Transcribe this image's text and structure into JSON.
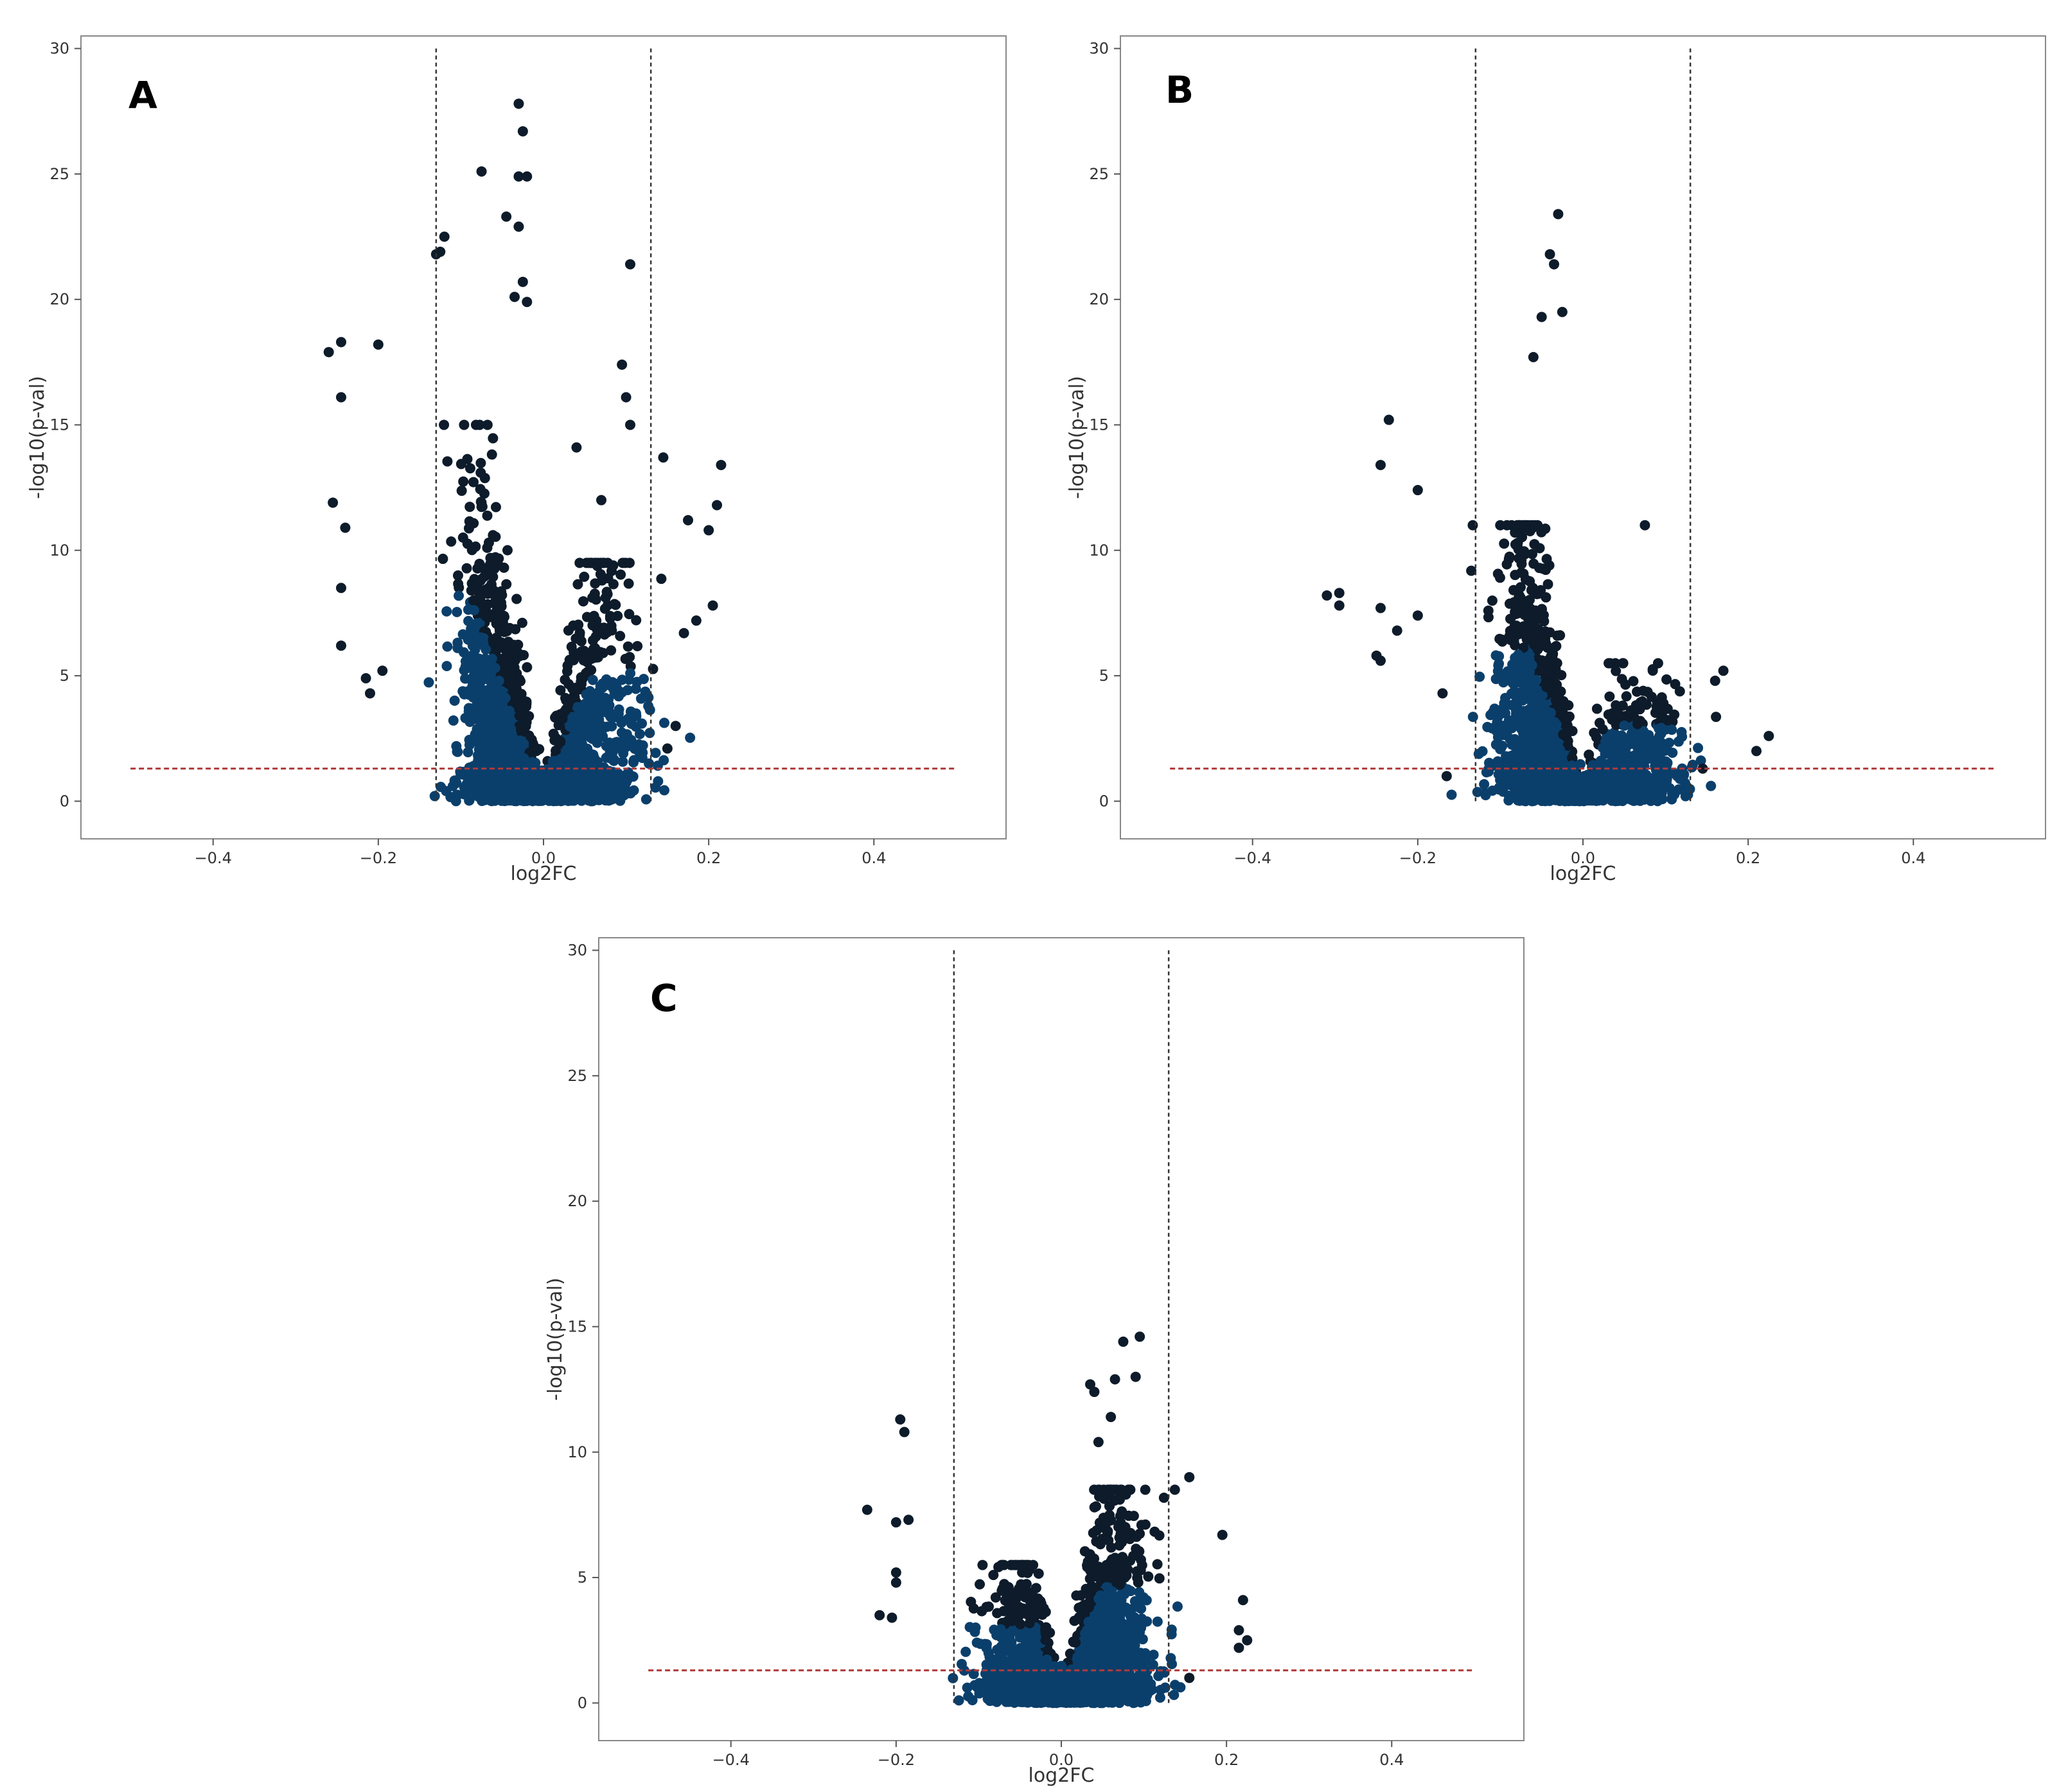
{
  "figure": {
    "panel_labels": [
      "A",
      "B",
      "C"
    ]
  },
  "chart_data": [
    {
      "panel": "A",
      "type": "scatter",
      "title": "",
      "xlabel": "log2FC",
      "ylabel": "-log10(p-val)",
      "xlim": [
        -0.56,
        0.56
      ],
      "ylim": [
        -1.5,
        30.5
      ],
      "xticks": [
        -0.4,
        -0.2,
        0.0,
        0.2,
        0.4
      ],
      "xtick_labels": [
        "−0.4",
        "−0.2",
        "0.0",
        "0.2",
        "0.4"
      ],
      "yticks": [
        0,
        5,
        10,
        15,
        20,
        25,
        30
      ],
      "ytick_labels": [
        "0",
        "5",
        "10",
        "15",
        "20",
        "25",
        "30"
      ],
      "fc_threshold": 0.13,
      "pval_threshold": 1.3,
      "threshold_line_range": [
        -0.5,
        0.5
      ],
      "vline_y_range": [
        0,
        30
      ],
      "point_color_dense": "#0b3f6b",
      "point_color_sparse": "#0d1b2a",
      "outlier_points": [
        [
          -0.03,
          27.8
        ],
        [
          -0.025,
          26.7
        ],
        [
          -0.02,
          24.9
        ],
        [
          -0.03,
          24.9
        ],
        [
          -0.075,
          25.1
        ],
        [
          -0.045,
          23.3
        ],
        [
          -0.03,
          22.9
        ],
        [
          -0.12,
          22.5
        ],
        [
          -0.125,
          21.9
        ],
        [
          -0.13,
          21.8
        ],
        [
          -0.025,
          20.7
        ],
        [
          -0.035,
          20.1
        ],
        [
          -0.02,
          19.9
        ],
        [
          0.105,
          21.4
        ],
        [
          -0.26,
          17.9
        ],
        [
          -0.245,
          18.3
        ],
        [
          -0.2,
          18.2
        ],
        [
          -0.245,
          16.1
        ],
        [
          -0.255,
          11.9
        ],
        [
          -0.24,
          10.9
        ],
        [
          -0.245,
          8.5
        ],
        [
          -0.245,
          6.2
        ],
        [
          -0.215,
          4.9
        ],
        [
          -0.21,
          4.3
        ],
        [
          -0.195,
          5.2
        ],
        [
          0.095,
          17.4
        ],
        [
          0.1,
          16.1
        ],
        [
          0.105,
          15.0
        ],
        [
          0.145,
          13.7
        ],
        [
          0.215,
          13.4
        ],
        [
          0.21,
          11.8
        ],
        [
          0.175,
          11.2
        ],
        [
          0.2,
          10.8
        ],
        [
          0.205,
          7.8
        ],
        [
          0.185,
          7.2
        ],
        [
          0.17,
          6.7
        ],
        [
          0.16,
          3.0
        ],
        [
          0.15,
          2.1
        ],
        [
          0.04,
          14.1
        ],
        [
          0.07,
          12.0
        ]
      ]
    },
    {
      "panel": "B",
      "type": "scatter",
      "title": "",
      "xlabel": "log2FC",
      "ylabel": "-log10(p-val)",
      "xlim": [
        -0.56,
        0.56
      ],
      "ylim": [
        -1.5,
        30.5
      ],
      "xticks": [
        -0.4,
        -0.2,
        0.0,
        0.2,
        0.4
      ],
      "xtick_labels": [
        "−0.4",
        "−0.2",
        "0.0",
        "0.2",
        "0.4"
      ],
      "yticks": [
        0,
        5,
        10,
        15,
        20,
        25,
        30
      ],
      "ytick_labels": [
        "0",
        "5",
        "10",
        "15",
        "20",
        "25",
        "30"
      ],
      "fc_threshold": 0.13,
      "pval_threshold": 1.3,
      "threshold_line_range": [
        -0.5,
        0.5
      ],
      "vline_y_range": [
        0,
        30
      ],
      "point_color_dense": "#0b3f6b",
      "point_color_sparse": "#0d1b2a",
      "outlier_points": [
        [
          -0.03,
          23.4
        ],
        [
          -0.04,
          21.8
        ],
        [
          -0.035,
          21.4
        ],
        [
          -0.025,
          19.5
        ],
        [
          -0.05,
          19.3
        ],
        [
          -0.06,
          17.7
        ],
        [
          -0.235,
          15.2
        ],
        [
          -0.245,
          13.4
        ],
        [
          -0.2,
          12.4
        ],
        [
          -0.31,
          8.2
        ],
        [
          -0.295,
          8.3
        ],
        [
          -0.295,
          7.8
        ],
        [
          -0.245,
          7.7
        ],
        [
          -0.2,
          7.4
        ],
        [
          -0.225,
          6.8
        ],
        [
          -0.25,
          5.8
        ],
        [
          -0.245,
          5.6
        ],
        [
          -0.17,
          4.3
        ],
        [
          -0.165,
          1.0
        ],
        [
          0.075,
          11.0
        ],
        [
          0.225,
          2.6
        ],
        [
          0.21,
          2.0
        ],
        [
          0.17,
          5.2
        ],
        [
          0.16,
          4.8
        ],
        [
          0.145,
          1.3
        ]
      ]
    },
    {
      "panel": "C",
      "type": "scatter",
      "title": "",
      "xlabel": "log2FC",
      "ylabel": "-log10(p-val)",
      "xlim": [
        -0.56,
        0.56
      ],
      "ylim": [
        -1.5,
        30.5
      ],
      "xticks": [
        -0.4,
        -0.2,
        0.0,
        0.2,
        0.4
      ],
      "xtick_labels": [
        "−0.4",
        "−0.2",
        "0.0",
        "0.2",
        "0.4"
      ],
      "yticks": [
        0,
        5,
        10,
        15,
        20,
        25,
        30
      ],
      "ytick_labels": [
        "0",
        "5",
        "10",
        "15",
        "20",
        "25",
        "30"
      ],
      "fc_threshold": 0.13,
      "pval_threshold": 1.3,
      "threshold_line_range": [
        -0.5,
        0.5
      ],
      "vline_y_range": [
        0,
        30
      ],
      "point_color_dense": "#0b3f6b",
      "point_color_sparse": "#0d1b2a",
      "outlier_points": [
        [
          0.095,
          14.6
        ],
        [
          0.075,
          14.4
        ],
        [
          0.09,
          13.0
        ],
        [
          0.065,
          12.9
        ],
        [
          0.035,
          12.7
        ],
        [
          0.04,
          12.4
        ],
        [
          0.06,
          11.4
        ],
        [
          0.045,
          10.4
        ],
        [
          -0.195,
          11.3
        ],
        [
          -0.19,
          10.8
        ],
        [
          -0.235,
          7.7
        ],
        [
          -0.2,
          7.2
        ],
        [
          -0.185,
          7.3
        ],
        [
          -0.2,
          5.2
        ],
        [
          -0.2,
          4.8
        ],
        [
          -0.22,
          3.5
        ],
        [
          -0.205,
          3.4
        ],
        [
          0.195,
          6.7
        ],
        [
          0.22,
          4.1
        ],
        [
          0.215,
          2.9
        ],
        [
          0.225,
          2.5
        ],
        [
          0.215,
          2.2
        ],
        [
          0.155,
          9.0
        ],
        [
          0.155,
          1.0
        ]
      ]
    }
  ]
}
